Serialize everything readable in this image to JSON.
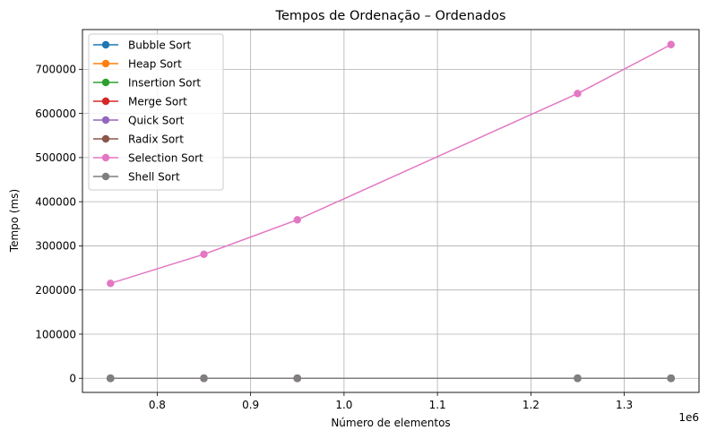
{
  "chart_data": {
    "type": "line",
    "title": "Tempos de Ordenação – Ordenados",
    "xlabel": "Número de elementos",
    "ylabel": "Tempo (ms)",
    "x_offset_label": "1e6",
    "x": [
      0.75,
      0.85,
      0.95,
      1.25,
      1.35
    ],
    "xlim": [
      0.72,
      1.38
    ],
    "ylim": [
      -32000,
      790000
    ],
    "x_ticks": [
      0.8,
      0.9,
      1.0,
      1.1,
      1.2,
      1.3
    ],
    "x_tick_labels": [
      "0.8",
      "0.9",
      "1.0",
      "1.1",
      "1.2",
      "1.3"
    ],
    "y_ticks": [
      0,
      100000,
      200000,
      300000,
      400000,
      500000,
      600000,
      700000
    ],
    "y_tick_labels": [
      "0",
      "100000",
      "200000",
      "300000",
      "400000",
      "500000",
      "600000",
      "700000"
    ],
    "grid": true,
    "legend_position": "top-left",
    "marker": "circle",
    "series": [
      {
        "name": "Bubble Sort",
        "color": "#1f77b4",
        "values": [
          0,
          0,
          0,
          0,
          0
        ]
      },
      {
        "name": "Heap Sort",
        "color": "#ff7f0e",
        "values": [
          0,
          0,
          0,
          0,
          0
        ]
      },
      {
        "name": "Insertion Sort",
        "color": "#2ca02c",
        "values": [
          0,
          0,
          0,
          0,
          0
        ]
      },
      {
        "name": "Merge Sort",
        "color": "#d62728",
        "values": [
          0,
          0,
          0,
          0,
          0
        ]
      },
      {
        "name": "Quick Sort",
        "color": "#9467bd",
        "values": [
          0,
          0,
          0,
          0,
          0
        ]
      },
      {
        "name": "Radix Sort",
        "color": "#8c564b",
        "values": [
          0,
          0,
          0,
          0,
          0
        ]
      },
      {
        "name": "Selection Sort",
        "color": "#e377c2",
        "values": [
          215000,
          281000,
          359000,
          645000,
          756000
        ]
      },
      {
        "name": "Shell Sort",
        "color": "#7f7f7f",
        "values": [
          0,
          0,
          0,
          0,
          0
        ]
      }
    ]
  }
}
